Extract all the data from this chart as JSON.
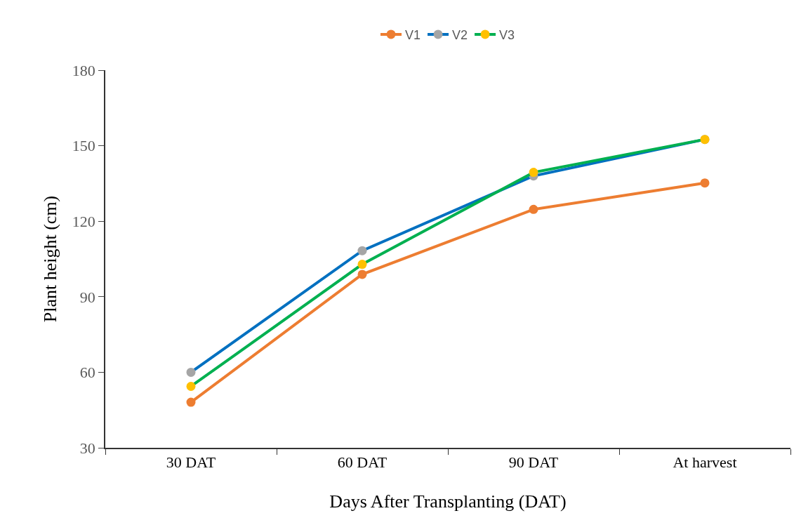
{
  "chart_data": {
    "type": "line",
    "xlabel": "Days After Transplanting (DAT)",
    "ylabel": "Plant height (cm)",
    "categories": [
      "30 DAT",
      "60 DAT",
      "90 DAT",
      "At harvest"
    ],
    "series": [
      {
        "name": "V1",
        "color": "#ed7d31",
        "colors": [
          "#ed7d31",
          "#ed7d31",
          "#ed7d31",
          "#ed7d31"
        ],
        "values": [
          48.1,
          98.9,
          124.7,
          135.2
        ]
      },
      {
        "name": "V2",
        "color": "#0070c0",
        "colors": [
          "#a5a5a5",
          "#a5a5a5",
          "#a5a5a5",
          "#a5a5a5"
        ],
        "values": [
          60,
          108.3,
          138,
          152.5
        ]
      },
      {
        "name": "V3",
        "color": "#00b050",
        "colors": [
          "#ffc000",
          "#ffc000",
          "#ffc000",
          "#ffc000"
        ],
        "values": [
          54.4,
          102.9,
          139.4,
          152.5
        ]
      }
    ],
    "ylim": [
      30,
      180
    ],
    "yticks": [
      30,
      60,
      90,
      120,
      150,
      180
    ],
    "legend": "top",
    "marker": "circle",
    "line_style": "solid"
  }
}
